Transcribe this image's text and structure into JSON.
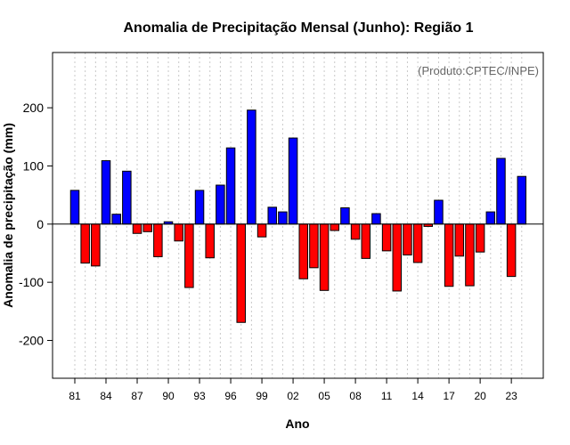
{
  "chart_data": {
    "type": "bar",
    "title": "Anomalia de Precipitação Mensal (Junho): Região 1",
    "xlabel": "Ano",
    "ylabel": "Anomalia de precipitação (mm)",
    "credit": "(Produto:CPTEC/INPE)",
    "years": [
      1981,
      1982,
      1983,
      1984,
      1985,
      1986,
      1987,
      1988,
      1989,
      1990,
      1991,
      1992,
      1993,
      1994,
      1995,
      1996,
      1997,
      1998,
      1999,
      2000,
      2001,
      2002,
      2003,
      2004,
      2005,
      2006,
      2007,
      2008,
      2009,
      2010,
      2011,
      2012,
      2013,
      2014,
      2015,
      2016,
      2017,
      2018,
      2019,
      2020,
      2021,
      2022,
      2023,
      2024
    ],
    "values": [
      58,
      -67,
      -72,
      109,
      17,
      91,
      -16,
      -13,
      -56,
      4,
      -29,
      -109,
      58,
      -58,
      67,
      131,
      -169,
      196,
      -22,
      29,
      21,
      148,
      -94,
      -75,
      -114,
      -11,
      28,
      -26,
      -59,
      18,
      -46,
      -115,
      -53,
      -66,
      -4,
      41,
      -107,
      -55,
      -106,
      -48,
      21,
      113,
      -90,
      82
    ],
    "xtick_labels": [
      "81",
      "84",
      "87",
      "90",
      "93",
      "96",
      "99",
      "02",
      "05",
      "08",
      "11",
      "14",
      "17",
      "20",
      "23"
    ],
    "yticks": [
      -200,
      -100,
      0,
      100,
      200
    ],
    "ytick_labels": [
      "-200",
      "-100",
      "0",
      "100",
      "200"
    ],
    "ylim": [
      -265,
      295
    ],
    "grid": true,
    "colors": {
      "positive": "#0000ff",
      "negative": "#ff0000",
      "zero_line": "#000000",
      "grid": "#c8c8c8"
    }
  }
}
